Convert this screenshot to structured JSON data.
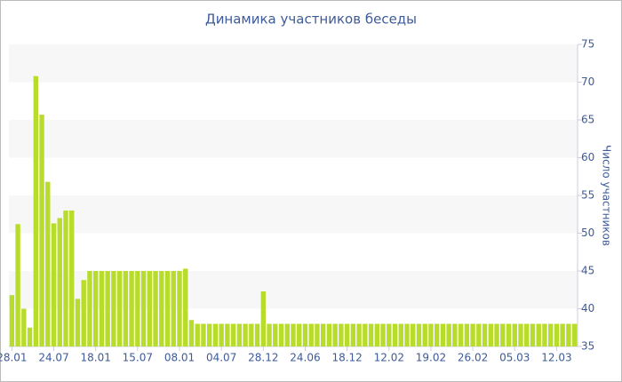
{
  "chart_data": {
    "type": "bar",
    "title": "Динамика участников беседы",
    "y_axis_label": "Число участников",
    "categories": [
      "28.01",
      null,
      null,
      null,
      null,
      null,
      null,
      "24.07",
      null,
      null,
      null,
      null,
      null,
      null,
      "18.01",
      null,
      null,
      null,
      null,
      null,
      null,
      "15.07",
      null,
      null,
      null,
      null,
      null,
      null,
      "08.01",
      null,
      null,
      null,
      null,
      null,
      null,
      "04.07",
      null,
      null,
      null,
      null,
      null,
      null,
      "28.12",
      null,
      null,
      null,
      null,
      null,
      null,
      "24.06",
      null,
      null,
      null,
      null,
      null,
      null,
      "18.12",
      null,
      null,
      null,
      null,
      null,
      null,
      "12.02",
      null,
      null,
      null,
      null,
      null,
      null,
      "19.02",
      null,
      null,
      null,
      null,
      null,
      null,
      "26.02",
      null,
      null,
      null,
      null,
      null,
      null,
      "05.03",
      null,
      null,
      null,
      null,
      null,
      null,
      "12.03",
      null,
      null,
      null
    ],
    "values": [
      41.8,
      51.2,
      40,
      37.5,
      70.8,
      65.7,
      56.8,
      51.3,
      52,
      53,
      53,
      41.3,
      43.8,
      45,
      45,
      45,
      45,
      45,
      45,
      45,
      45,
      45,
      45,
      45,
      45,
      45,
      45,
      45,
      45,
      45.3,
      38.5,
      38,
      38,
      38,
      38,
      38,
      38,
      38,
      38,
      38,
      38,
      38,
      42.3,
      38,
      38,
      38,
      38,
      38,
      38,
      38,
      38,
      38,
      38,
      38,
      38,
      38,
      38,
      38,
      38,
      38,
      38,
      38,
      38,
      38,
      38,
      38,
      38,
      38,
      38,
      38,
      38,
      38,
      38,
      38,
      38,
      38,
      38,
      38,
      38,
      38,
      38,
      38,
      38,
      38,
      38,
      38,
      38,
      38,
      38,
      38,
      38,
      38,
      38,
      38,
      38
    ],
    "color": "#b8dc2c",
    "ylim": [
      35,
      75
    ],
    "yticks": [
      35,
      40,
      45,
      50,
      55,
      60,
      65,
      70,
      75
    ],
    "grid": "bands",
    "y_axis_side": "right"
  }
}
